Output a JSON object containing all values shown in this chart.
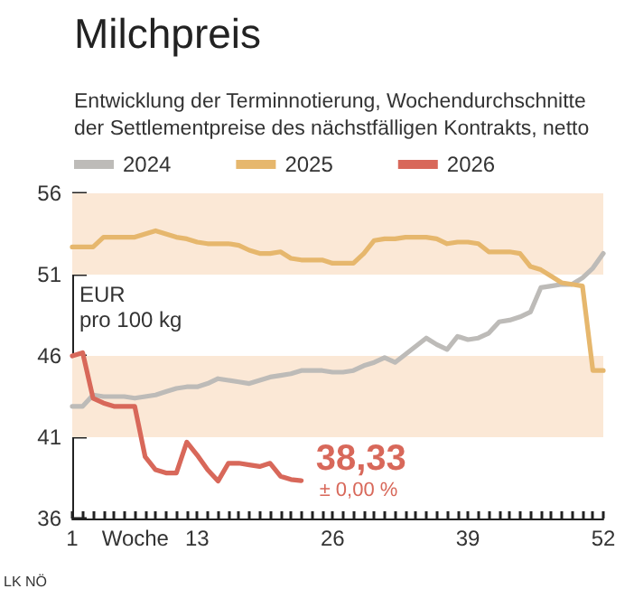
{
  "chart_data": {
    "type": "line",
    "title": "Milchpreis",
    "subtitle": "Entwicklung der Terminnotierung, Wochendurchschnitte der Settlementpreise des nächstfälligen Kontrakts, netto",
    "xlabel": "Woche",
    "ylabel": "EUR pro 100 kg",
    "x": [
      1,
      2,
      3,
      4,
      5,
      6,
      7,
      8,
      9,
      10,
      11,
      12,
      13,
      14,
      15,
      16,
      17,
      18,
      19,
      20,
      21,
      22,
      23,
      24,
      25,
      26,
      27,
      28,
      29,
      30,
      31,
      32,
      33,
      34,
      35,
      36,
      37,
      38,
      39,
      40,
      41,
      42,
      43,
      44,
      45,
      46,
      47,
      48,
      49,
      50,
      51,
      52
    ],
    "series": [
      {
        "name": "2024",
        "color": "#bdbbb8",
        "values": [
          42.9,
          42.9,
          43.6,
          43.5,
          43.5,
          43.5,
          43.4,
          43.5,
          43.6,
          43.8,
          44.0,
          44.1,
          44.1,
          44.3,
          44.6,
          44.5,
          44.4,
          44.3,
          44.5,
          44.7,
          44.8,
          44.9,
          45.1,
          45.1,
          45.1,
          45.0,
          45.0,
          45.1,
          45.4,
          45.6,
          45.9,
          45.6,
          46.1,
          46.6,
          47.1,
          46.7,
          46.4,
          47.2,
          47.0,
          47.1,
          47.4,
          48.1,
          48.2,
          48.4,
          48.7,
          50.2,
          50.3,
          50.4,
          50.4,
          50.8,
          51.4,
          52.3
        ]
      },
      {
        "name": "2025",
        "color": "#e6b76d",
        "values": [
          52.7,
          52.7,
          52.7,
          53.3,
          53.3,
          53.3,
          53.3,
          53.5,
          53.7,
          53.5,
          53.3,
          53.2,
          53.0,
          52.9,
          52.9,
          52.9,
          52.8,
          52.5,
          52.3,
          52.3,
          52.4,
          52.0,
          51.9,
          51.9,
          51.9,
          51.7,
          51.7,
          51.7,
          52.3,
          53.1,
          53.2,
          53.2,
          53.3,
          53.3,
          53.3,
          53.2,
          52.9,
          53.0,
          53.0,
          52.9,
          52.4,
          52.4,
          52.4,
          52.3,
          51.5,
          51.3,
          50.9,
          50.5,
          50.4,
          50.3,
          45.1,
          45.1
        ]
      },
      {
        "name": "2026",
        "color": "#d8685a",
        "values": [
          46.0,
          46.2,
          43.4,
          43.1,
          42.9,
          42.9,
          42.9,
          39.8,
          39.0,
          38.8,
          38.8,
          40.7,
          39.9,
          39.0,
          38.3,
          39.4,
          39.4,
          39.3,
          39.2,
          39.4,
          38.6,
          38.4,
          38.33,
          null,
          null,
          null,
          null,
          null,
          null,
          null,
          null,
          null,
          null,
          null,
          null,
          null,
          null,
          null,
          null,
          null,
          null,
          null,
          null,
          null,
          null,
          null,
          null,
          null,
          null,
          null,
          null,
          null
        ]
      }
    ],
    "xlim": [
      1,
      52
    ],
    "xticks": [
      1,
      {
        "value": 2,
        "label": null
      },
      {
        "value": 3,
        "label": null
      },
      {
        "value": 4,
        "label": null
      },
      {
        "value": 5,
        "label": null
      },
      {
        "value": 6,
        "label": null
      },
      {
        "value": 7,
        "label": null
      },
      {
        "value": 8,
        "label": null
      },
      {
        "value": 9,
        "label": null
      },
      {
        "value": 10,
        "label": null
      },
      {
        "value": 11,
        "label": null
      },
      {
        "value": 12,
        "label": null
      },
      13,
      {
        "value": 14,
        "label": null
      },
      {
        "value": 15,
        "label": null
      },
      {
        "value": 16,
        "label": null
      },
      {
        "value": 17,
        "label": null
      },
      {
        "value": 18,
        "label": null
      },
      {
        "value": 19,
        "label": null
      },
      {
        "value": 20,
        "label": null
      },
      {
        "value": 21,
        "label": null
      },
      {
        "value": 22,
        "label": null
      },
      {
        "value": 23,
        "label": null
      },
      {
        "value": 24,
        "label": null
      },
      {
        "value": 25,
        "label": null
      },
      26,
      {
        "value": 27,
        "label": null
      },
      {
        "value": 28,
        "label": null
      },
      {
        "value": 29,
        "label": null
      },
      {
        "value": 30,
        "label": null
      },
      {
        "value": 31,
        "label": null
      },
      {
        "value": 32,
        "label": null
      },
      {
        "value": 33,
        "label": null
      },
      {
        "value": 34,
        "label": null
      },
      {
        "value": 35,
        "label": null
      },
      {
        "value": 36,
        "label": null
      },
      {
        "value": 37,
        "label": null
      },
      {
        "value": 38,
        "label": null
      },
      39,
      {
        "value": 40,
        "label": null
      },
      {
        "value": 41,
        "label": null
      },
      {
        "value": 42,
        "label": null
      },
      {
        "value": 43,
        "label": null
      },
      {
        "value": 44,
        "label": null
      },
      {
        "value": 45,
        "label": null
      },
      {
        "value": 46,
        "label": null
      },
      {
        "value": 47,
        "label": null
      },
      {
        "value": 48,
        "label": null
      },
      {
        "value": 49,
        "label": null
      },
      {
        "value": 50,
        "label": null
      },
      {
        "value": 51,
        "label": null
      },
      52
    ],
    "ylim": [
      36,
      56
    ],
    "yticks": [
      36,
      41,
      46,
      51,
      56
    ],
    "bands": [
      {
        "axis": "y",
        "from": 51,
        "to": 56,
        "color": "#fbe8d6"
      },
      {
        "axis": "y",
        "from": 41,
        "to": 46,
        "color": "#fbe8d6"
      }
    ],
    "annotations": [
      {
        "text": "38,33",
        "x": 23,
        "y": 38.33
      },
      "± 0,00 %",
      "LK NÖ"
    ],
    "legend": "top left",
    "grid": false,
    "marker": "none",
    "line_style": "solid"
  }
}
